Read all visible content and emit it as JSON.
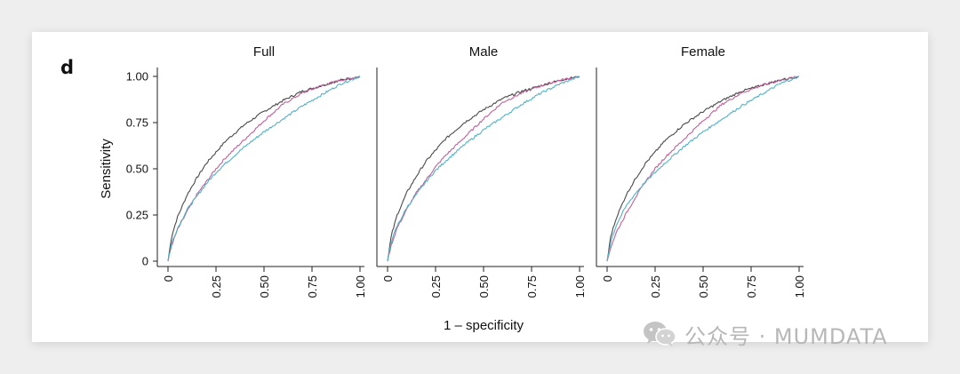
{
  "figure": {
    "panel_label": "d",
    "watermark_text": "公众号 · MUMDATA"
  },
  "chart_data": {
    "type": "line",
    "xlabel": "1 – specificity",
    "ylabel": "Sensitivity",
    "xlim": [
      0,
      1
    ],
    "ylim": [
      0,
      1
    ],
    "x_ticks": [
      "0",
      "0.25",
      "0.50",
      "0.75",
      "1.00"
    ],
    "y_ticks": [
      "0",
      "0.25",
      "0.50",
      "0.75",
      "1.00"
    ],
    "grid": false,
    "legend": "none",
    "colors": {
      "dark": "#4a4a4a",
      "magenta": "#c0609a",
      "cyan": "#4fb3c8",
      "axis": "#222222"
    },
    "panels": [
      {
        "title": "Full",
        "series": [
          {
            "color": "dark",
            "x": [
              0,
              0.02,
              0.05,
              0.1,
              0.15,
              0.2,
              0.25,
              0.3,
              0.4,
              0.5,
              0.6,
              0.7,
              0.8,
              0.9,
              1
            ],
            "y": [
              0,
              0.14,
              0.24,
              0.36,
              0.45,
              0.53,
              0.59,
              0.65,
              0.74,
              0.81,
              0.87,
              0.92,
              0.95,
              0.98,
              1
            ]
          },
          {
            "color": "magenta",
            "x": [
              0,
              0.02,
              0.05,
              0.1,
              0.15,
              0.2,
              0.25,
              0.3,
              0.4,
              0.5,
              0.6,
              0.7,
              0.8,
              0.9,
              1
            ],
            "y": [
              0,
              0.09,
              0.17,
              0.27,
              0.36,
              0.43,
              0.5,
              0.56,
              0.66,
              0.76,
              0.85,
              0.91,
              0.95,
              0.98,
              1
            ]
          },
          {
            "color": "cyan",
            "x": [
              0,
              0.02,
              0.05,
              0.1,
              0.15,
              0.2,
              0.25,
              0.3,
              0.4,
              0.5,
              0.6,
              0.7,
              0.8,
              0.9,
              1
            ],
            "y": [
              0,
              0.1,
              0.18,
              0.28,
              0.35,
              0.42,
              0.48,
              0.53,
              0.62,
              0.7,
              0.77,
              0.84,
              0.9,
              0.96,
              1
            ]
          }
        ]
      },
      {
        "title": "Male",
        "series": [
          {
            "color": "dark",
            "x": [
              0,
              0.02,
              0.05,
              0.1,
              0.15,
              0.2,
              0.25,
              0.3,
              0.4,
              0.5,
              0.6,
              0.7,
              0.8,
              0.9,
              1
            ],
            "y": [
              0,
              0.14,
              0.25,
              0.37,
              0.46,
              0.54,
              0.6,
              0.66,
              0.75,
              0.82,
              0.88,
              0.92,
              0.95,
              0.98,
              1
            ]
          },
          {
            "color": "magenta",
            "x": [
              0,
              0.02,
              0.05,
              0.1,
              0.15,
              0.2,
              0.25,
              0.3,
              0.4,
              0.5,
              0.6,
              0.7,
              0.8,
              0.9,
              1
            ],
            "y": [
              0,
              0.09,
              0.18,
              0.28,
              0.37,
              0.44,
              0.51,
              0.57,
              0.67,
              0.77,
              0.86,
              0.91,
              0.95,
              0.98,
              1
            ]
          },
          {
            "color": "cyan",
            "x": [
              0,
              0.02,
              0.05,
              0.1,
              0.15,
              0.2,
              0.25,
              0.3,
              0.4,
              0.5,
              0.6,
              0.7,
              0.8,
              0.9,
              1
            ],
            "y": [
              0,
              0.11,
              0.19,
              0.29,
              0.36,
              0.43,
              0.49,
              0.54,
              0.63,
              0.71,
              0.78,
              0.85,
              0.91,
              0.96,
              1
            ]
          }
        ]
      },
      {
        "title": "Female",
        "series": [
          {
            "color": "dark",
            "x": [
              0,
              0.02,
              0.05,
              0.1,
              0.15,
              0.2,
              0.25,
              0.3,
              0.4,
              0.5,
              0.6,
              0.7,
              0.8,
              0.9,
              1
            ],
            "y": [
              0,
              0.14,
              0.24,
              0.36,
              0.45,
              0.53,
              0.59,
              0.65,
              0.74,
              0.81,
              0.87,
              0.92,
              0.95,
              0.98,
              1
            ]
          },
          {
            "color": "magenta",
            "x": [
              0,
              0.02,
              0.05,
              0.1,
              0.15,
              0.2,
              0.25,
              0.3,
              0.4,
              0.5,
              0.6,
              0.7,
              0.8,
              0.9,
              1
            ],
            "y": [
              0,
              0.08,
              0.16,
              0.26,
              0.35,
              0.43,
              0.5,
              0.56,
              0.66,
              0.76,
              0.85,
              0.91,
              0.95,
              0.98,
              1
            ]
          },
          {
            "color": "cyan",
            "x": [
              0,
              0.02,
              0.05,
              0.1,
              0.15,
              0.2,
              0.25,
              0.3,
              0.4,
              0.5,
              0.6,
              0.7,
              0.8,
              0.9,
              1
            ],
            "y": [
              0,
              0.11,
              0.2,
              0.3,
              0.37,
              0.43,
              0.48,
              0.53,
              0.62,
              0.7,
              0.77,
              0.84,
              0.9,
              0.96,
              1
            ]
          }
        ]
      }
    ]
  }
}
